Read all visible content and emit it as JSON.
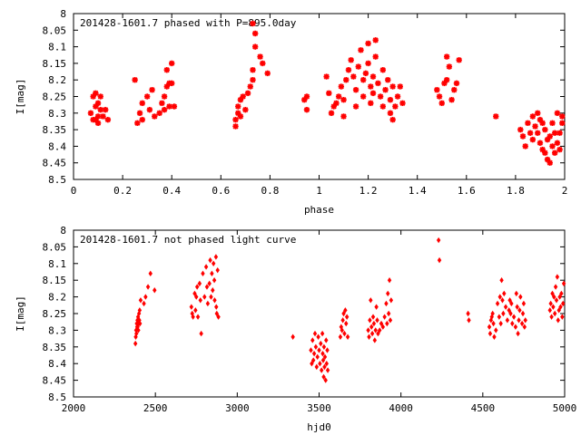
{
  "chart_data": [
    {
      "type": "scatter",
      "title": "201428-1601.7 phased with P=895.0day",
      "xlabel": "phase",
      "ylabel": "I[mag]",
      "xlim": [
        0,
        2
      ],
      "ylim": [
        8.5,
        8
      ],
      "y_inverted": true,
      "marker": "asterisk",
      "x_ticks": [
        "0",
        "0.2",
        "0.4",
        "0.6",
        "0.8",
        "1",
        "1.2",
        "1.4",
        "1.6",
        "1.8",
        "2"
      ],
      "y_ticks": [
        "8",
        "8.05",
        "8.1",
        "8.15",
        "8.2",
        "8.25",
        "8.3",
        "8.35",
        "8.4",
        "8.45",
        "8.5"
      ],
      "grid": false,
      "color": "#ff0000",
      "points": [
        [
          0.07,
          8.3
        ],
        [
          0.08,
          8.32
        ],
        [
          0.08,
          8.25
        ],
        [
          0.09,
          8.24
        ],
        [
          0.09,
          8.28
        ],
        [
          0.1,
          8.27
        ],
        [
          0.1,
          8.31
        ],
        [
          0.1,
          8.33
        ],
        [
          0.11,
          8.25
        ],
        [
          0.11,
          8.29
        ],
        [
          0.12,
          8.31
        ],
        [
          0.09,
          8.32
        ],
        [
          0.13,
          8.29
        ],
        [
          0.14,
          8.32
        ],
        [
          0.25,
          8.2
        ],
        [
          0.26,
          8.33
        ],
        [
          0.27,
          8.3
        ],
        [
          0.28,
          8.32
        ],
        [
          0.28,
          8.27
        ],
        [
          0.3,
          8.25
        ],
        [
          0.31,
          8.29
        ],
        [
          0.32,
          8.23
        ],
        [
          0.33,
          8.31
        ],
        [
          0.35,
          8.3
        ],
        [
          0.36,
          8.27
        ],
        [
          0.37,
          8.29
        ],
        [
          0.37,
          8.25
        ],
        [
          0.38,
          8.17
        ],
        [
          0.38,
          8.22
        ],
        [
          0.39,
          8.28
        ],
        [
          0.39,
          8.21
        ],
        [
          0.4,
          8.15
        ],
        [
          0.4,
          8.21
        ],
        [
          0.41,
          8.28
        ],
        [
          0.66,
          8.34
        ],
        [
          0.66,
          8.32
        ],
        [
          0.67,
          8.3
        ],
        [
          0.67,
          8.28
        ],
        [
          0.68,
          8.31
        ],
        [
          0.68,
          8.26
        ],
        [
          0.69,
          8.25
        ],
        [
          0.7,
          8.29
        ],
        [
          0.71,
          8.24
        ],
        [
          0.72,
          8.22
        ],
        [
          0.73,
          8.2
        ],
        [
          0.73,
          8.17
        ],
        [
          0.73,
          8.03
        ],
        [
          0.74,
          8.06
        ],
        [
          0.74,
          8.1
        ],
        [
          0.76,
          8.13
        ],
        [
          0.77,
          8.15
        ],
        [
          0.79,
          8.18
        ],
        [
          0.94,
          8.26
        ],
        [
          0.95,
          8.25
        ],
        [
          0.95,
          8.29
        ],
        [
          1.03,
          8.19
        ],
        [
          1.04,
          8.24
        ],
        [
          1.05,
          8.3
        ],
        [
          1.06,
          8.28
        ],
        [
          1.07,
          8.27
        ],
        [
          1.08,
          8.25
        ],
        [
          1.09,
          8.22
        ],
        [
          1.1,
          8.26
        ],
        [
          1.1,
          8.31
        ],
        [
          1.11,
          8.2
        ],
        [
          1.12,
          8.17
        ],
        [
          1.13,
          8.14
        ],
        [
          1.14,
          8.19
        ],
        [
          1.15,
          8.23
        ],
        [
          1.15,
          8.28
        ],
        [
          1.16,
          8.16
        ],
        [
          1.17,
          8.11
        ],
        [
          1.18,
          8.2
        ],
        [
          1.18,
          8.25
        ],
        [
          1.19,
          8.18
        ],
        [
          1.2,
          8.09
        ],
        [
          1.2,
          8.15
        ],
        [
          1.21,
          8.22
        ],
        [
          1.21,
          8.27
        ],
        [
          1.22,
          8.19
        ],
        [
          1.22,
          8.24
        ],
        [
          1.23,
          8.08
        ],
        [
          1.23,
          8.13
        ],
        [
          1.24,
          8.21
        ],
        [
          1.25,
          8.25
        ],
        [
          1.26,
          8.28
        ],
        [
          1.26,
          8.17
        ],
        [
          1.27,
          8.23
        ],
        [
          1.28,
          8.2
        ],
        [
          1.29,
          8.3
        ],
        [
          1.29,
          8.26
        ],
        [
          1.3,
          8.22
        ],
        [
          1.3,
          8.32
        ],
        [
          1.31,
          8.28
        ],
        [
          1.32,
          8.25
        ],
        [
          1.33,
          8.22
        ],
        [
          1.34,
          8.27
        ],
        [
          1.48,
          8.23
        ],
        [
          1.49,
          8.25
        ],
        [
          1.5,
          8.27
        ],
        [
          1.51,
          8.21
        ],
        [
          1.52,
          8.13
        ],
        [
          1.52,
          8.2
        ],
        [
          1.53,
          8.16
        ],
        [
          1.54,
          8.26
        ],
        [
          1.55,
          8.23
        ],
        [
          1.56,
          8.21
        ],
        [
          1.57,
          8.14
        ],
        [
          1.72,
          8.31
        ],
        [
          1.82,
          8.35
        ],
        [
          1.83,
          8.37
        ],
        [
          1.84,
          8.4
        ],
        [
          1.85,
          8.33
        ],
        [
          1.86,
          8.36
        ],
        [
          1.87,
          8.38
        ],
        [
          1.87,
          8.31
        ],
        [
          1.88,
          8.34
        ],
        [
          1.89,
          8.36
        ],
        [
          1.89,
          8.3
        ],
        [
          1.9,
          8.39
        ],
        [
          1.9,
          8.32
        ],
        [
          1.91,
          8.33
        ],
        [
          1.91,
          8.41
        ],
        [
          1.92,
          8.35
        ],
        [
          1.92,
          8.42
        ],
        [
          1.93,
          8.38
        ],
        [
          1.93,
          8.44
        ],
        [
          1.94,
          8.37
        ],
        [
          1.94,
          8.45
        ],
        [
          1.95,
          8.33
        ],
        [
          1.95,
          8.4
        ],
        [
          1.96,
          8.36
        ],
        [
          1.96,
          8.42
        ],
        [
          1.97,
          8.39
        ],
        [
          1.97,
          8.3
        ],
        [
          1.98,
          8.36
        ],
        [
          1.98,
          8.41
        ],
        [
          1.99,
          8.33
        ],
        [
          1.99,
          8.31
        ]
      ]
    },
    {
      "type": "scatter",
      "title": "201428-1601.7 not phased light curve",
      "xlabel": "hjd0",
      "ylabel": "I[mag]",
      "xlim": [
        2000,
        5000
      ],
      "ylim": [
        8.5,
        8
      ],
      "y_inverted": true,
      "marker": "diamond",
      "x_ticks": [
        "2000",
        "2500",
        "3000",
        "3500",
        "4000",
        "4500",
        "5000"
      ],
      "y_ticks": [
        "8",
        "8.05",
        "8.1",
        "8.15",
        "8.2",
        "8.25",
        "8.3",
        "8.35",
        "8.4",
        "8.45",
        "8.5"
      ],
      "grid": false,
      "color": "#ff0000",
      "points": [
        [
          2378,
          8.34
        ],
        [
          2380,
          8.32
        ],
        [
          2382,
          8.3
        ],
        [
          2384,
          8.31
        ],
        [
          2386,
          8.28
        ],
        [
          2388,
          8.29
        ],
        [
          2390,
          8.27
        ],
        [
          2392,
          8.29
        ],
        [
          2394,
          8.26
        ],
        [
          2396,
          8.3
        ],
        [
          2398,
          8.28
        ],
        [
          2400,
          8.25
        ],
        [
          2402,
          8.27
        ],
        [
          2404,
          8.24
        ],
        [
          2406,
          8.28
        ],
        [
          2410,
          8.21
        ],
        [
          2430,
          8.22
        ],
        [
          2440,
          8.2
        ],
        [
          2455,
          8.17
        ],
        [
          2470,
          8.13
        ],
        [
          2495,
          8.18
        ],
        [
          2720,
          8.23
        ],
        [
          2725,
          8.25
        ],
        [
          2730,
          8.26
        ],
        [
          2740,
          8.19
        ],
        [
          2745,
          8.24
        ],
        [
          2750,
          8.2
        ],
        [
          2755,
          8.17
        ],
        [
          2760,
          8.26
        ],
        [
          2770,
          8.16
        ],
        [
          2775,
          8.21
        ],
        [
          2780,
          8.31
        ],
        [
          2790,
          8.13
        ],
        [
          2800,
          8.2
        ],
        [
          2810,
          8.11
        ],
        [
          2815,
          8.17
        ],
        [
          2820,
          8.22
        ],
        [
          2830,
          8.16
        ],
        [
          2835,
          8.09
        ],
        [
          2840,
          8.2
        ],
        [
          2845,
          8.13
        ],
        [
          2850,
          8.18
        ],
        [
          2855,
          8.1
        ],
        [
          2860,
          8.15
        ],
        [
          2862,
          8.21
        ],
        [
          2870,
          8.08
        ],
        [
          2872,
          8.23
        ],
        [
          2875,
          8.25
        ],
        [
          2880,
          8.12
        ],
        [
          2885,
          8.26
        ],
        [
          3340,
          8.32
        ],
        [
          3450,
          8.36
        ],
        [
          3455,
          8.4
        ],
        [
          3460,
          8.33
        ],
        [
          3465,
          8.39
        ],
        [
          3470,
          8.37
        ],
        [
          3475,
          8.31
        ],
        [
          3480,
          8.35
        ],
        [
          3485,
          8.41
        ],
        [
          3490,
          8.38
        ],
        [
          3495,
          8.32
        ],
        [
          3500,
          8.36
        ],
        [
          3505,
          8.4
        ],
        [
          3510,
          8.34
        ],
        [
          3515,
          8.42
        ],
        [
          3520,
          8.31
        ],
        [
          3522,
          8.37
        ],
        [
          3525,
          8.39
        ],
        [
          3528,
          8.44
        ],
        [
          3530,
          8.35
        ],
        [
          3533,
          8.41
        ],
        [
          3536,
          8.38
        ],
        [
          3540,
          8.45
        ],
        [
          3543,
          8.33
        ],
        [
          3546,
          8.4
        ],
        [
          3550,
          8.36
        ],
        [
          3553,
          8.42
        ],
        [
          3630,
          8.32
        ],
        [
          3635,
          8.29
        ],
        [
          3640,
          8.3
        ],
        [
          3645,
          8.27
        ],
        [
          3650,
          8.25
        ],
        [
          3655,
          8.31
        ],
        [
          3660,
          8.24
        ],
        [
          3665,
          8.28
        ],
        [
          3670,
          8.26
        ],
        [
          3675,
          8.32
        ],
        [
          3800,
          8.3
        ],
        [
          3805,
          8.32
        ],
        [
          3810,
          8.27
        ],
        [
          3815,
          8.21
        ],
        [
          3820,
          8.29
        ],
        [
          3825,
          8.31
        ],
        [
          3830,
          8.26
        ],
        [
          3835,
          8.28
        ],
        [
          3840,
          8.33
        ],
        [
          3845,
          8.3
        ],
        [
          3850,
          8.23
        ],
        [
          3855,
          8.27
        ],
        [
          3860,
          8.31
        ],
        [
          3870,
          8.3
        ],
        [
          3880,
          8.28
        ],
        [
          3890,
          8.29
        ],
        [
          3900,
          8.26
        ],
        [
          3910,
          8.22
        ],
        [
          3915,
          8.28
        ],
        [
          3920,
          8.19
        ],
        [
          3925,
          8.25
        ],
        [
          3930,
          8.15
        ],
        [
          3935,
          8.27
        ],
        [
          3940,
          8.21
        ],
        [
          4230,
          8.03
        ],
        [
          4235,
          8.09
        ],
        [
          4410,
          8.25
        ],
        [
          4415,
          8.27
        ],
        [
          4540,
          8.29
        ],
        [
          4545,
          8.31
        ],
        [
          4550,
          8.27
        ],
        [
          4555,
          8.26
        ],
        [
          4560,
          8.25
        ],
        [
          4565,
          8.28
        ],
        [
          4570,
          8.32
        ],
        [
          4580,
          8.3
        ],
        [
          4590,
          8.22
        ],
        [
          4600,
          8.26
        ],
        [
          4605,
          8.2
        ],
        [
          4610,
          8.28
        ],
        [
          4615,
          8.15
        ],
        [
          4620,
          8.21
        ],
        [
          4625,
          8.25
        ],
        [
          4630,
          8.19
        ],
        [
          4640,
          8.23
        ],
        [
          4650,
          8.27
        ],
        [
          4660,
          8.24
        ],
        [
          4665,
          8.21
        ],
        [
          4670,
          8.25
        ],
        [
          4675,
          8.22
        ],
        [
          4680,
          8.28
        ],
        [
          4690,
          8.26
        ],
        [
          4700,
          8.29
        ],
        [
          4705,
          8.19
        ],
        [
          4710,
          8.23
        ],
        [
          4715,
          8.31
        ],
        [
          4720,
          8.27
        ],
        [
          4725,
          8.24
        ],
        [
          4730,
          8.2
        ],
        [
          4740,
          8.28
        ],
        [
          4745,
          8.25
        ],
        [
          4750,
          8.22
        ],
        [
          4755,
          8.29
        ],
        [
          4760,
          8.27
        ],
        [
          4910,
          8.24
        ],
        [
          4915,
          8.22
        ],
        [
          4920,
          8.26
        ],
        [
          4925,
          8.19
        ],
        [
          4930,
          8.23
        ],
        [
          4935,
          8.2
        ],
        [
          4940,
          8.25
        ],
        [
          4945,
          8.17
        ],
        [
          4950,
          8.21
        ],
        [
          4955,
          8.14
        ],
        [
          4960,
          8.27
        ],
        [
          4965,
          8.24
        ],
        [
          4970,
          8.2
        ],
        [
          4975,
          8.23
        ],
        [
          4980,
          8.19
        ],
        [
          4985,
          8.26
        ],
        [
          4990,
          8.22
        ],
        [
          4995,
          8.16
        ]
      ]
    }
  ]
}
